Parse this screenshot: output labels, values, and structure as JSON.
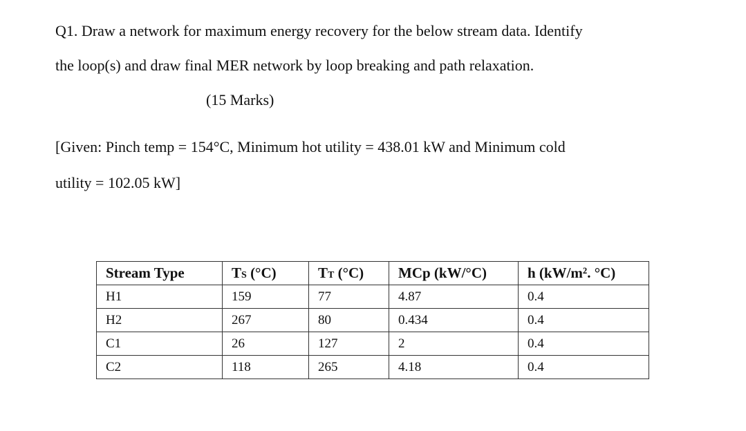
{
  "question": {
    "lines": [
      "Q1. Draw a network for maximum energy recovery for the below stream data. Identify",
      "the loop(s) and draw final MER network by loop breaking and path relaxation."
    ],
    "marks": "(15 Marks)"
  },
  "given": {
    "lines": [
      "[Given: Pinch temp = 154°C, Minimum hot utility = 438.01 kW and Minimum cold",
      "utility = 102.05 kW]"
    ]
  },
  "table": {
    "header": [
      {
        "text": "Stream Type"
      },
      {
        "base": "T",
        "sub": "S",
        "unit": " (°C)"
      },
      {
        "base": "T",
        "sub": "T",
        "unit": " (°C)"
      },
      {
        "text": "MCp (kW/°C)"
      },
      {
        "text": "h (kW/m². °C)"
      }
    ],
    "rows": [
      [
        "H1",
        "159",
        "77",
        "4.87",
        "0.4"
      ],
      [
        "H2",
        "267",
        "80",
        "0.434",
        "0.4"
      ],
      [
        "C1",
        "26",
        "127",
        "2",
        "0.4"
      ],
      [
        "C2",
        "118",
        "265",
        "4.18",
        "0.4"
      ]
    ]
  }
}
